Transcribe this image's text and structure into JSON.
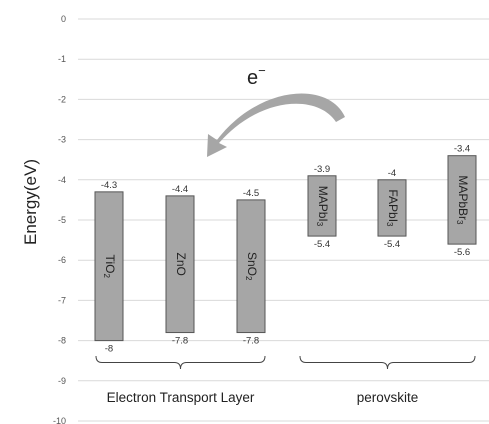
{
  "chart_data": {
    "type": "bar",
    "subtype": "floating-range",
    "ylabel": "Energy(eV)",
    "ylim": [
      -10,
      0
    ],
    "yticks": [
      0,
      -1,
      -2,
      -3,
      -4,
      -5,
      -6,
      -7,
      -8,
      -9,
      -10
    ],
    "grid": true,
    "bar_color": "#a6a6a6",
    "bars": [
      {
        "name": "TiO2",
        "label_main": "TiO",
        "label_sub": "2",
        "label_tail": "",
        "top": -4.3,
        "bottom": -8,
        "top_label": "-4.3",
        "bottom_label": "-8",
        "group": 0
      },
      {
        "name": "ZnO",
        "label_main": "ZnO",
        "label_sub": "",
        "label_tail": "",
        "top": -4.4,
        "bottom": -7.8,
        "top_label": "-4.4",
        "bottom_label": "-7.8",
        "group": 0
      },
      {
        "name": "SnO2",
        "label_main": "SnO",
        "label_sub": "2",
        "label_tail": "",
        "top": -4.5,
        "bottom": -7.8,
        "top_label": "-4.5",
        "bottom_label": "-7.8",
        "group": 0
      },
      {
        "name": "MAPbI3",
        "label_main": "MAPbI",
        "label_sub": "3",
        "label_tail": "",
        "top": -3.9,
        "bottom": -5.4,
        "top_label": "-3.9",
        "bottom_label": "-5.4",
        "group": 1
      },
      {
        "name": "FAPbI3",
        "label_main": "FAPbI",
        "label_sub": "3",
        "label_tail": "",
        "top": -4,
        "bottom": -5.4,
        "top_label": "-4",
        "bottom_label": "-5.4",
        "group": 1
      },
      {
        "name": "MAPbBr3",
        "label_main": "MAPbBr",
        "label_sub": "3",
        "label_tail": "",
        "top": -3.4,
        "bottom": -5.6,
        "top_label": "-3.4",
        "bottom_label": "-5.6",
        "group": 1
      }
    ],
    "groups": [
      "Electron Transport Layer",
      "perovskite"
    ],
    "annotation": {
      "main": "e",
      "sup": "−"
    }
  }
}
